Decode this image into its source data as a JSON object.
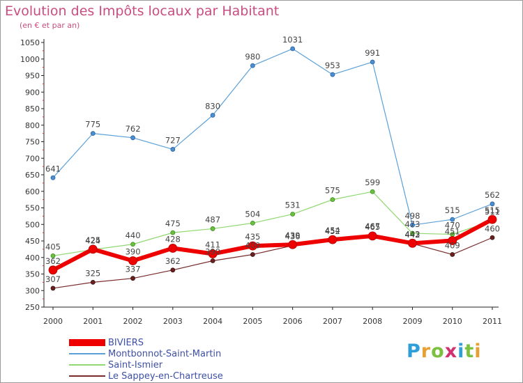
{
  "title": "Evolution des Impôts locaux par Habitant",
  "subtitle": "(en € et par an)",
  "logo": {
    "letters": [
      "P",
      "r",
      "o",
      "x",
      "i",
      "t",
      "i"
    ],
    "colors": [
      "#2e9fd8",
      "#e8a030",
      "#7cc040",
      "#d23070",
      "#2e9fd8",
      "#7cc040",
      "#e8a030"
    ]
  },
  "chart_data": {
    "type": "line",
    "title": "Evolution des Impôts locaux par Habitant",
    "subtitle": "(en € et par an)",
    "x": [
      "2000",
      "2001",
      "2002",
      "2003",
      "2004",
      "2005",
      "2006",
      "2007",
      "2008",
      "2009",
      "2010",
      "2011"
    ],
    "ylim": [
      250,
      1050
    ],
    "yticks": [
      250,
      300,
      350,
      400,
      450,
      500,
      550,
      600,
      650,
      700,
      750,
      800,
      850,
      900,
      950,
      1000,
      1050
    ],
    "grid": false,
    "legend_position": "bottom-left",
    "series": [
      {
        "name": "Le Sappey-en-Chartreuse",
        "color": "#7a2a2a",
        "values": [
          307,
          325,
          337,
          362,
          390,
          409,
          436,
          452,
          467,
          442,
          409,
          460
        ]
      },
      {
        "name": "Saint-Ismier",
        "color": "#90d870",
        "values": [
          405,
          424,
          440,
          475,
          487,
          504,
          531,
          575,
          599,
          473,
          470,
          511
        ]
      },
      {
        "name": "Montbonnot-Saint-Martin",
        "color": "#5aa0d8",
        "values": [
          641,
          775,
          762,
          727,
          830,
          980,
          1031,
          953,
          991,
          498,
          515,
          562
        ]
      },
      {
        "name": "BIVIERS",
        "color": "#ee0000",
        "values": [
          362,
          425,
          390,
          428,
          411,
          435,
          439,
          454,
          465,
          443,
          451,
          515
        ]
      }
    ],
    "legend": [
      "BIVIERS",
      "Montbonnot-Saint-Martin",
      "Saint-Ismier",
      "Le Sappey-en-Chartreuse"
    ]
  }
}
